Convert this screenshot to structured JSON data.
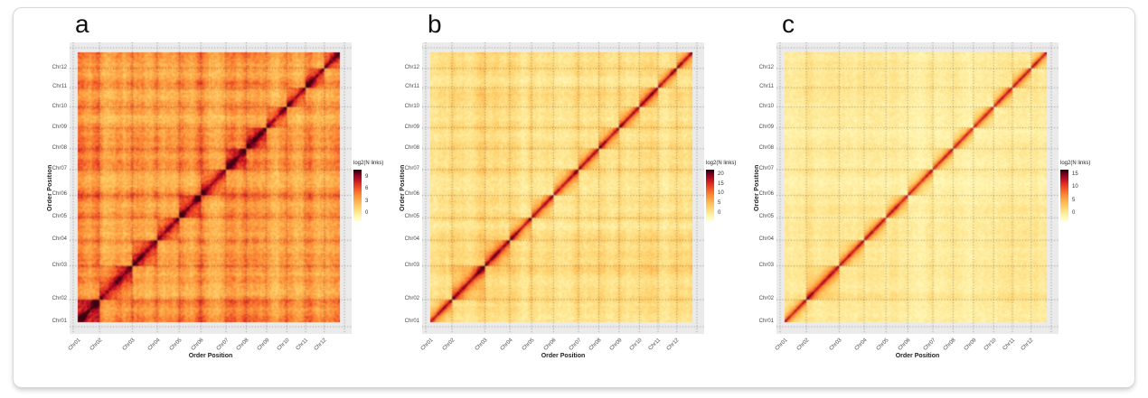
{
  "chart_data": {
    "type": "heatmap",
    "shared": {
      "description": "Three Hi-C chromatin contact maps of a 12-chromosome genome assembly. Signal (log2 of link counts) is highest along the diagonal within each chromosome block and decays with genomic distance; faint plaid inter-chromosomal background.",
      "xlabel": "Order Position",
      "ylabel": "Order Position",
      "legend_title": "log2(N links)",
      "categories": [
        "Chr01",
        "Chr02",
        "Chr03",
        "Chr04",
        "Chr05",
        "Chr06",
        "Chr07",
        "Chr08",
        "Chr09",
        "Chr10",
        "Chr11",
        "Chr12"
      ],
      "chromosome_relative_sizes": [
        25,
        36,
        27,
        25,
        25,
        27,
        23,
        22,
        22,
        20,
        20,
        18
      ],
      "grid": "dotted gridlines at chromosome boundaries",
      "legend_position": "right of each panel",
      "colors": {
        "panel_background": "#EBEBEB",
        "page_background": "#FFFFFF",
        "card_border": "#D8D8D8",
        "gridline": "#4D4D4D",
        "colormap_stops": [
          [
            0.0,
            "#FFFFD8"
          ],
          [
            0.1,
            "#FFF5B1"
          ],
          [
            0.2,
            "#FEE187"
          ],
          [
            0.3,
            "#FECB65"
          ],
          [
            0.42,
            "#FDA747"
          ],
          [
            0.52,
            "#FB8534"
          ],
          [
            0.62,
            "#F25B29"
          ],
          [
            0.72,
            "#DF3222"
          ],
          [
            0.8,
            "#C01324"
          ],
          [
            0.88,
            "#930523"
          ],
          [
            0.94,
            "#600016"
          ],
          [
            1.0,
            "#160004"
          ]
        ]
      }
    },
    "panels": [
      {
        "label": "a",
        "legend_ticks": [
          9,
          6,
          3,
          0
        ],
        "scale_domain": [
          -2,
          11
        ],
        "diagonal_peak_log2": 10,
        "background_character": "strong orange inter-chromosomal signal with plaid pattern, broad dark-red diagonal",
        "render": {
          "seed": 11,
          "base": 0.17,
          "plaid": 0.55,
          "diag_amp": 0.45,
          "decay_frac": 0.3,
          "block_bonus": 0.09,
          "noise": 0.07,
          "end_boost": 0.22
        }
      },
      {
        "label": "b",
        "legend_ticks": [
          20,
          15,
          10,
          5,
          0
        ],
        "scale_domain": [
          -4,
          22.5
        ],
        "diagonal_peak_log2": 21,
        "background_character": "pale yellow background, moderate plaid, narrow red diagonal with orange halo",
        "render": {
          "seed": 23,
          "base": 0.055,
          "plaid": 0.3,
          "diag_amp": 0.6,
          "decay_frac": 0.13,
          "block_bonus": 0.11,
          "noise": 0.05,
          "end_boost": 0.18
        }
      },
      {
        "label": "c",
        "legend_ticks": [
          15,
          10,
          5,
          0
        ],
        "scale_domain": [
          -3,
          17
        ],
        "diagonal_peak_log2": 15,
        "background_character": "lightest yellow background, weak plaid, thin red diagonal",
        "render": {
          "seed": 37,
          "base": 0.055,
          "plaid": 0.2,
          "diag_amp": 0.62,
          "decay_frac": 0.1,
          "block_bonus": 0.08,
          "noise": 0.04,
          "end_boost": 0.1
        }
      }
    ]
  }
}
